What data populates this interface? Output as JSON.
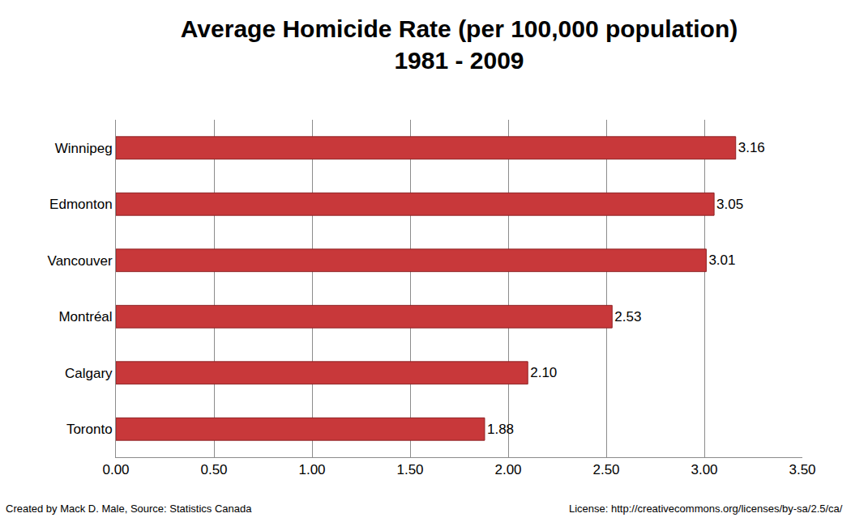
{
  "chart_data": {
    "type": "bar",
    "orientation": "horizontal",
    "title": "Average Homicide Rate (per 100,000 population)\n1981 - 2009",
    "categories": [
      "Winnipeg",
      "Edmonton",
      "Vancouver",
      "Montréal",
      "Calgary",
      "Toronto"
    ],
    "values": [
      3.16,
      3.05,
      3.01,
      2.53,
      2.1,
      1.88
    ],
    "value_labels": [
      "3.16",
      "3.05",
      "3.01",
      "2.53",
      "2.10",
      "1.88"
    ],
    "data_labels": true,
    "color": "#c8383a",
    "xlim": [
      0,
      3.5
    ],
    "xticks": [
      {
        "value": 0,
        "label": "0.00"
      },
      {
        "value": 0.5,
        "label": "0.50"
      },
      {
        "value": 1,
        "label": "1.00"
      },
      {
        "value": 1.5,
        "label": "1.50"
      },
      {
        "value": 2,
        "label": "2.00"
      },
      {
        "value": 2.5,
        "label": "2.50"
      },
      {
        "value": 3,
        "label": "3.00"
      },
      {
        "value": 3.5,
        "label": "3.50"
      }
    ],
    "grid": true,
    "annotations": [
      "Created by Mack D. Male, Source: Statistics Canada",
      "License: http://creativecommons.org/licenses/by-sa/2.5/ca/"
    ]
  }
}
